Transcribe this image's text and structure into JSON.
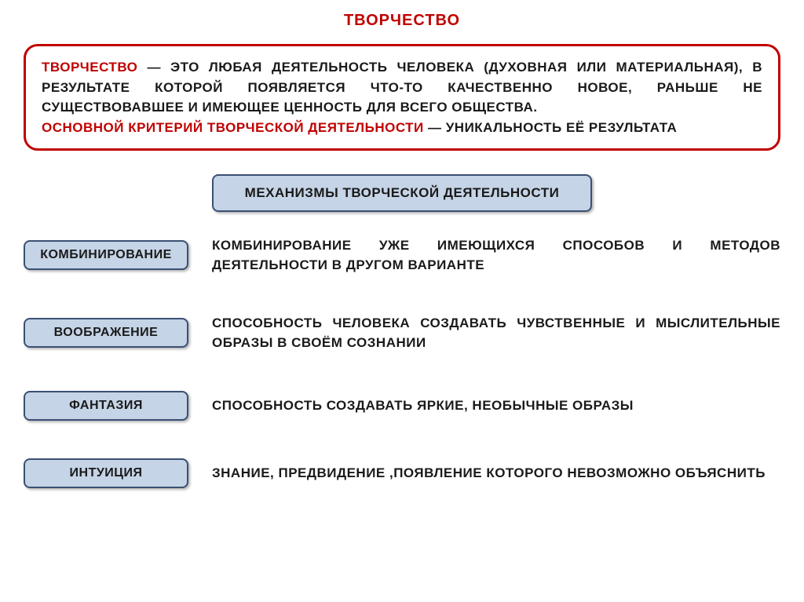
{
  "colors": {
    "accent_red": "#c00000",
    "text_dark": "#1a1a1a",
    "box_border": "#3b5073",
    "box_fill": "#c5d4e6"
  },
  "title": "ТВОРЧЕСТВО",
  "definition": {
    "term1": "ТВОРЧЕСТВО",
    "body1": " — ЭТО ЛЮБАЯ ДЕЯТЕЛЬНОСТЬ ЧЕЛОВЕКА (ДУХОВНАЯ ИЛИ МАТЕРИАЛЬНАЯ), В РЕЗУЛЬТАТЕ КОТОРОЙ ПОЯВЛЯЕТСЯ ЧТО-ТО КАЧЕСТВЕННО НОВОЕ, РАНЬШЕ НЕ СУЩЕСТВОВАВШЕЕ И ИМЕЮЩЕЕ ЦЕННОСТЬ ДЛЯ ВСЕГО ОБЩЕСТВА.",
    "term2": "ОСНОВНОЙ КРИТЕРИЙ ТВОРЧЕСКОЙ ДЕЯТЕЛЬНОСТИ",
    "body2": " — УНИКАЛЬНОСТЬ ЕЁ РЕЗУЛЬТАТА"
  },
  "subheading": "МЕХАНИЗМЫ ТВОРЧЕСКОЙ ДЕЯТЕЛЬНОСТИ",
  "mechanisms": [
    {
      "label": "КОМБИНИРОВАНИЕ",
      "desc": "КОМБИНИРОВАНИЕ УЖЕ ИМЕЮЩИХСЯ СПОСОБОВ И МЕТОДОВ ДЕЯТЕЛЬНОСТИ В ДРУГОМ ВАРИАНТЕ"
    },
    {
      "label": "ВООБРАЖЕНИЕ",
      "desc": "СПОСОБНОСТЬ ЧЕЛОВЕКА СОЗДАВАТЬ ЧУВСТВЕННЫЕ И МЫСЛИТЕЛЬНЫЕ ОБРАЗЫ В СВОЁМ СОЗНАНИИ"
    },
    {
      "label": "ФАНТАЗИЯ",
      "desc": "СПОСОБНОСТЬ СОЗДАВАТЬ ЯРКИЕ, НЕОБЫЧНЫЕ ОБРАЗЫ"
    },
    {
      "label": "ИНТУИЦИЯ",
      "desc": "ЗНАНИЕ, ПРЕДВИДЕНИЕ ,ПОЯВЛЕНИЕ КОТОРОГО НЕВОЗМОЖНО ОБЪЯСНИТЬ"
    }
  ]
}
